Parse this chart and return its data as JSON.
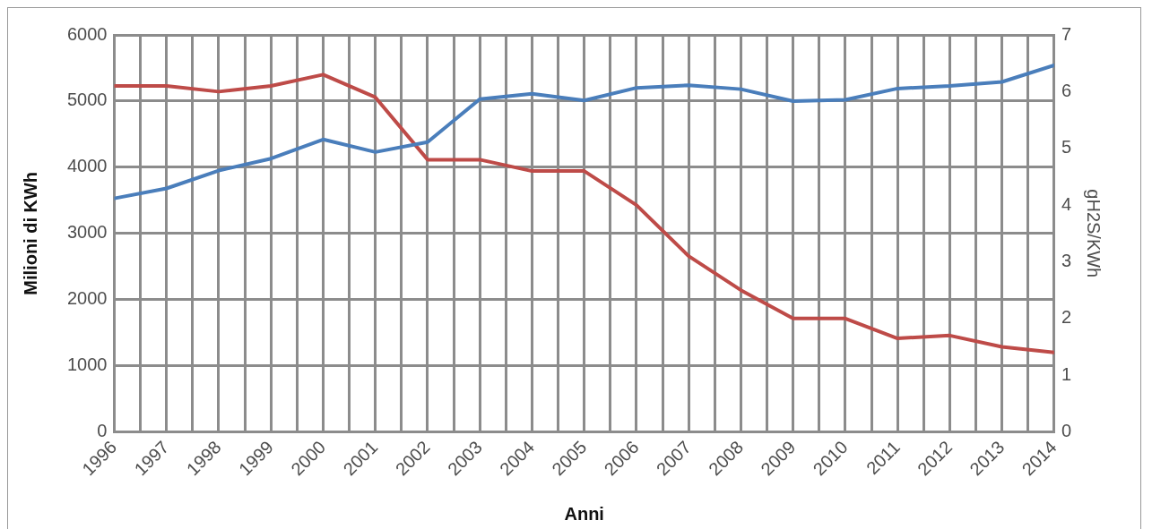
{
  "chart_data": {
    "type": "line",
    "xlabel": "Anni",
    "ylabel": "Milioni di KWh",
    "y2label": "gH2S/KWh",
    "x": [
      1996,
      1997,
      1998,
      1999,
      2000,
      2001,
      2002,
      2003,
      2004,
      2005,
      2006,
      2007,
      2008,
      2009,
      2010,
      2011,
      2012,
      2013,
      2014
    ],
    "series": [
      {
        "color": "#4a7ebb",
        "values": [
          3530,
          3680,
          3950,
          4130,
          4420,
          4230,
          4380,
          5030,
          5110,
          5010,
          5200,
          5240,
          5180,
          5000,
          5020,
          5190,
          5230,
          5290,
          5540
        ]
      },
      {
        "color": "#be4b48",
        "axis": "y2",
        "values": [
          6.1,
          6.1,
          6.0,
          6.1,
          6.3,
          5.9,
          4.8,
          4.8,
          4.6,
          4.6,
          4.0,
          3.1,
          2.5,
          2.0,
          2.0,
          1.65,
          1.7,
          1.5,
          1.4
        ]
      }
    ],
    "xlim": [
      1996,
      2014
    ],
    "xticks": [
      1996,
      {
        "value": 1996.5,
        "label": null
      },
      1997,
      {
        "value": 1997.5,
        "label": null
      },
      1998,
      {
        "value": 1998.5,
        "label": null
      },
      1999,
      {
        "value": 1999.5,
        "label": null
      },
      2000,
      {
        "value": 2000.5,
        "label": null
      },
      2001,
      {
        "value": 2001.5,
        "label": null
      },
      2002,
      {
        "value": 2002.5,
        "label": null
      },
      2003,
      {
        "value": 2003.5,
        "label": null
      },
      2004,
      {
        "value": 2004.5,
        "label": null
      },
      2005,
      {
        "value": 2005.5,
        "label": null
      },
      2006,
      {
        "value": 2006.5,
        "label": null
      },
      2007,
      {
        "value": 2007.5,
        "label": null
      },
      2008,
      {
        "value": 2008.5,
        "label": null
      },
      2009,
      {
        "value": 2009.5,
        "label": null
      },
      2010,
      {
        "value": 2010.5,
        "label": null
      },
      2011,
      {
        "value": 2011.5,
        "label": null
      },
      2012,
      {
        "value": 2012.5,
        "label": null
      },
      2013,
      {
        "value": 2013.5,
        "label": null
      },
      2014
    ],
    "ylim": [
      0,
      6000
    ],
    "yticks": [
      0,
      1000,
      2000,
      3000,
      4000,
      5000,
      6000
    ],
    "y2lim": [
      0,
      7
    ],
    "y2ticks": [
      0,
      1,
      2,
      3,
      4,
      5,
      6,
      7
    ],
    "grid": true,
    "legend": false,
    "marker": "none",
    "line_style": "solid"
  }
}
